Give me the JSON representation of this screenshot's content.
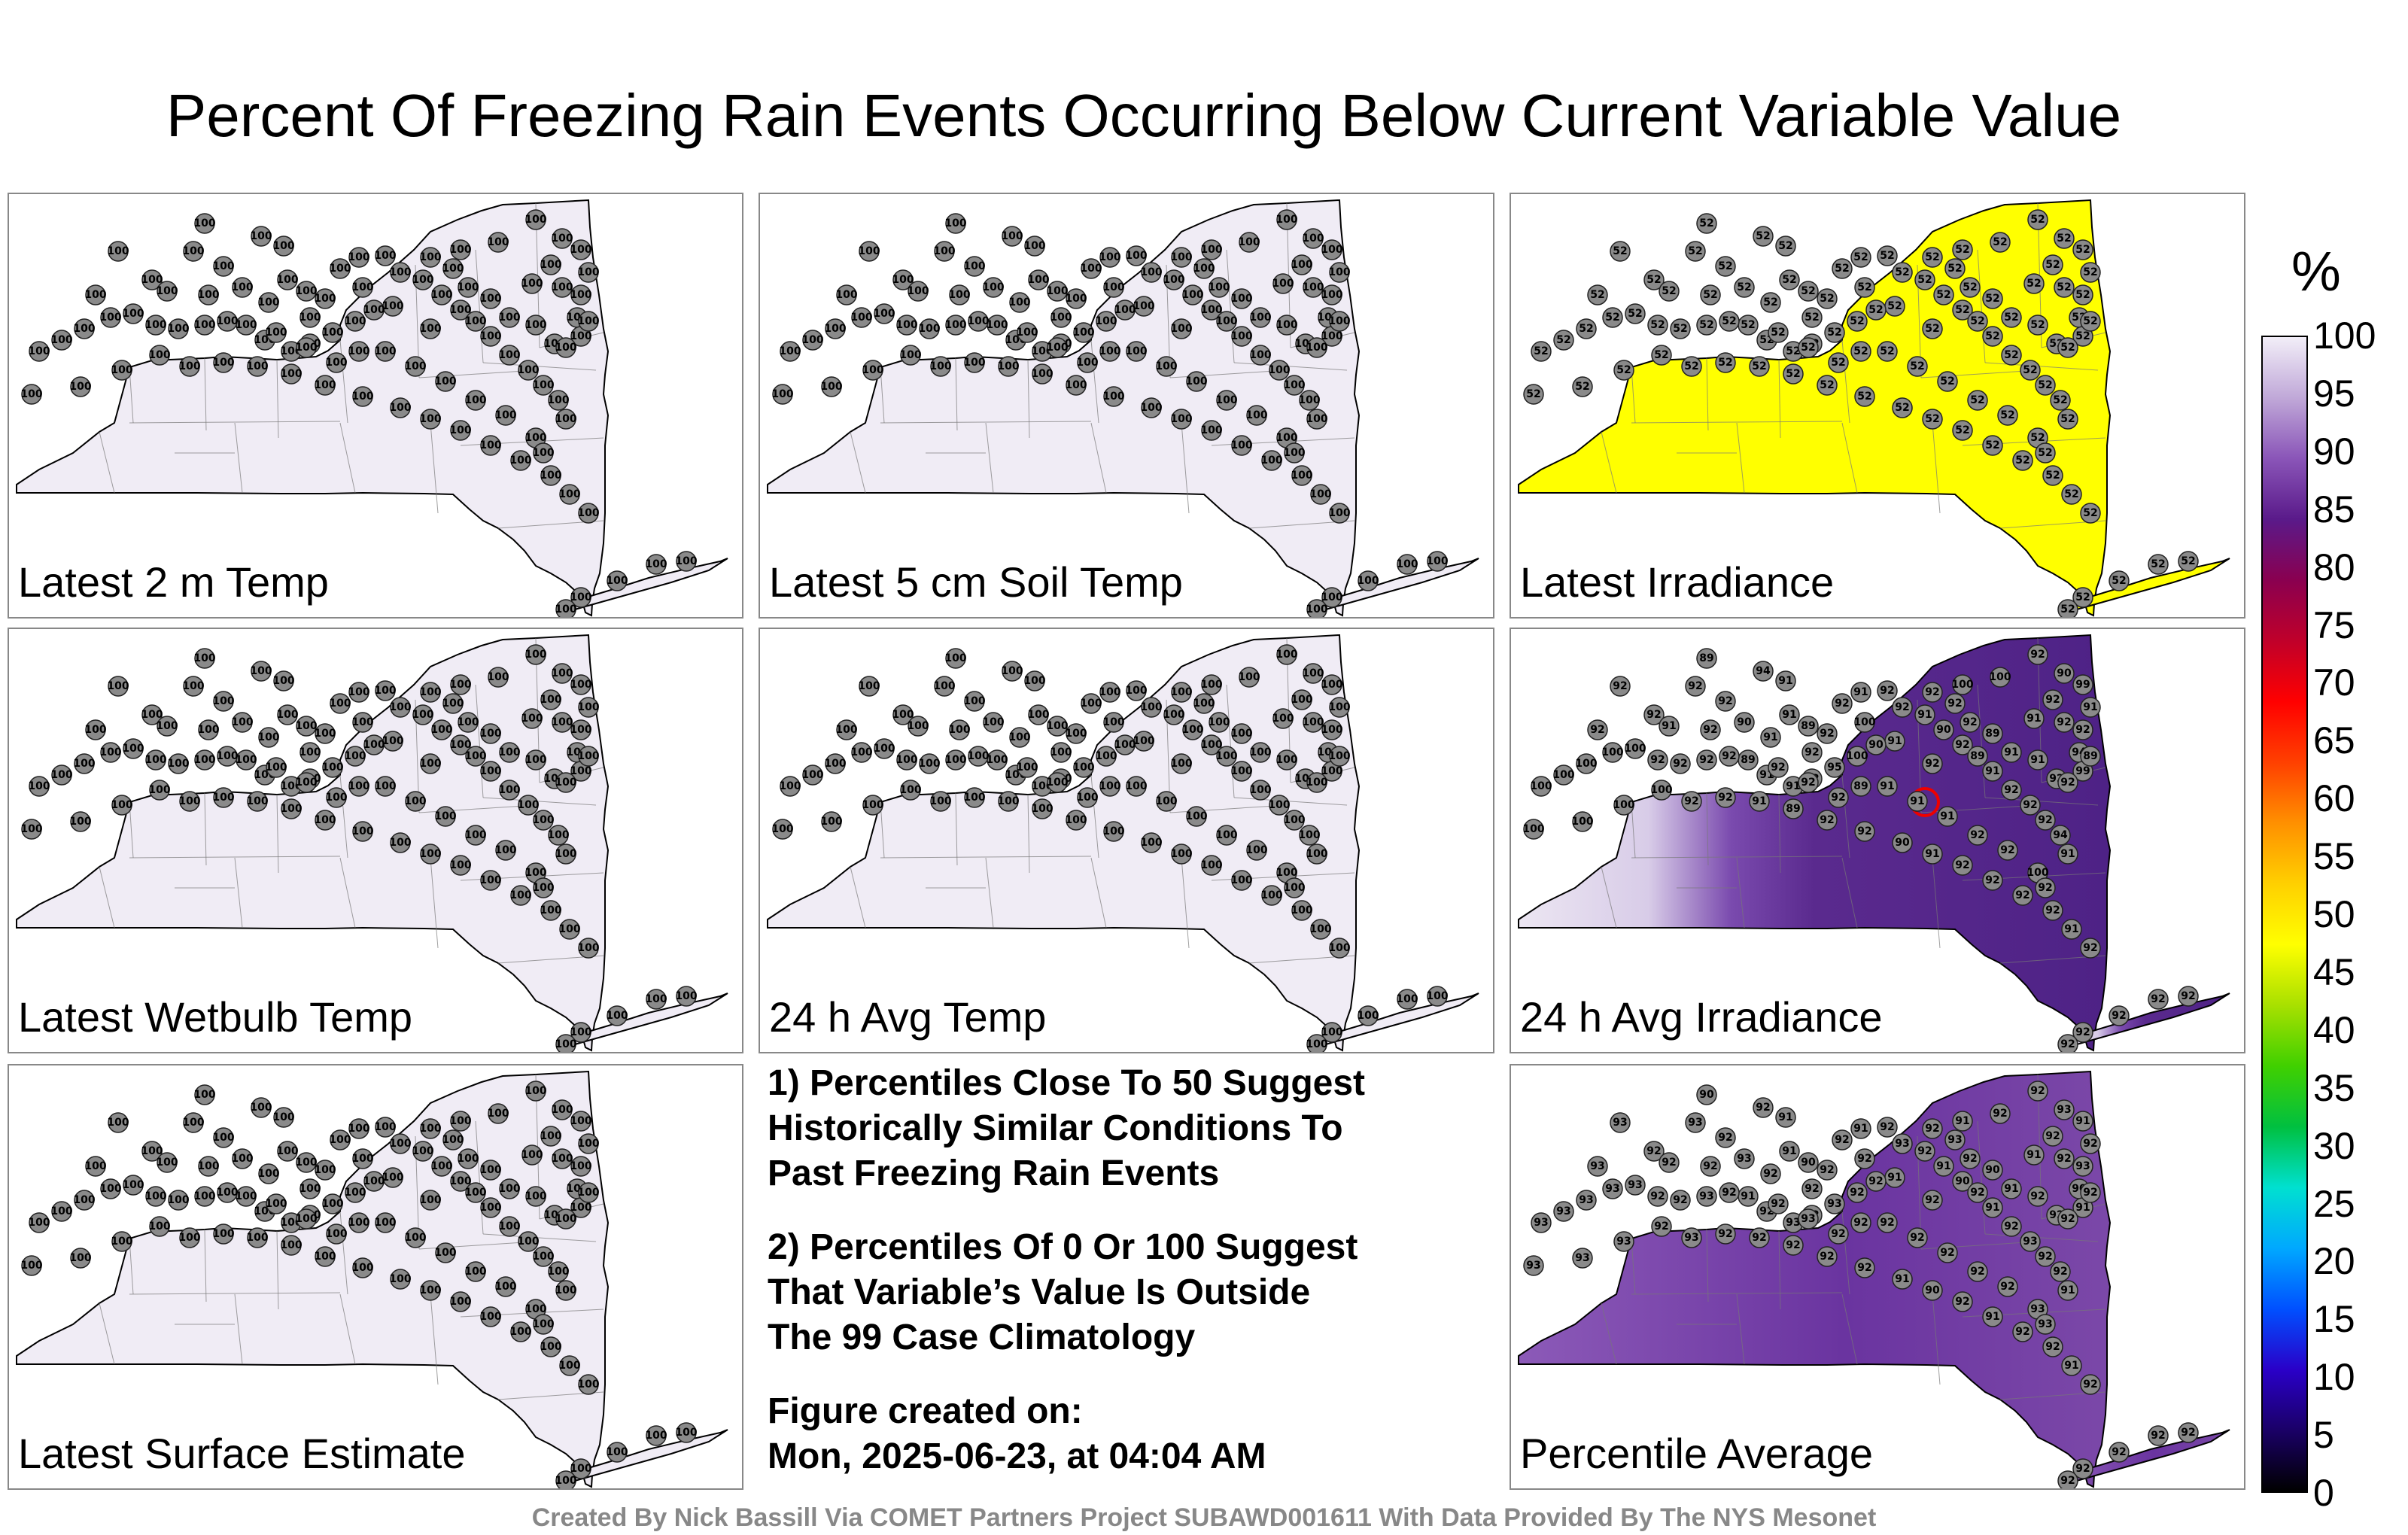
{
  "title": "Percent Of Freezing Rain Events Occurring Below Current Variable Value",
  "colorbar": {
    "unit": "%",
    "ticks": [
      "100",
      "95",
      "90",
      "85",
      "80",
      "75",
      "70",
      "65",
      "60",
      "55",
      "50",
      "45",
      "40",
      "35",
      "30",
      "25",
      "20",
      "15",
      "10",
      "5",
      "0"
    ],
    "stops": [
      "#000000",
      "#1a0066",
      "#2a00c8",
      "#0050ff",
      "#00a8ff",
      "#00e0d0",
      "#00c040",
      "#40d000",
      "#a8e000",
      "#ffff00",
      "#ffd000",
      "#ff9000",
      "#ff4000",
      "#ff0000",
      "#c0002a",
      "#8a0050",
      "#5a1a8a",
      "#8a55b8",
      "#c0a8d8",
      "#f2eef8"
    ]
  },
  "panels": [
    {
      "label": "Latest 2 m Temp",
      "fill": "#f0ecf5",
      "value": "100",
      "variant": "uniform"
    },
    {
      "label": "Latest 5 cm Soil Temp",
      "fill": "#f0ecf5",
      "value": "100",
      "variant": "uniform"
    },
    {
      "label": "Latest Irradiance",
      "fill": "#ffff00",
      "value": "52",
      "variant": "uniform"
    },
    {
      "label": "Latest Wetbulb Temp",
      "fill": "#f0ecf5",
      "value": "100",
      "variant": "uniform"
    },
    {
      "label": "24 h Avg Temp",
      "fill": "#f0ecf5",
      "value": "100",
      "variant": "uniform"
    },
    {
      "label": "24 h Avg Irradiance",
      "fill": "#5a2a8e",
      "value": "92",
      "variant": "irradiance"
    },
    {
      "label": "Latest Surface Estimate",
      "fill": "#f0ecf5",
      "value": "100",
      "variant": "uniform"
    },
    {
      "label": "Percentile Average",
      "fill": "#7b48a8",
      "value": "92",
      "variant": "average"
    }
  ],
  "notes": {
    "note1": "1) Percentiles Close To 50 Suggest\nHistorically Similar Conditions To\nPast Freezing Rain Events",
    "note2": "2) Percentiles Of 0 Or 100 Suggest\nThat Variable’s Value Is Outside\nThe 99 Case Climatology",
    "created": "Figure created on:\nMon, 2025-06-23, at 04:04 AM"
  },
  "footer": "Created By Nick Bassill Via COMET Partners Project SUBAWD001611 With Data Provided By The NYS Mesonet"
}
